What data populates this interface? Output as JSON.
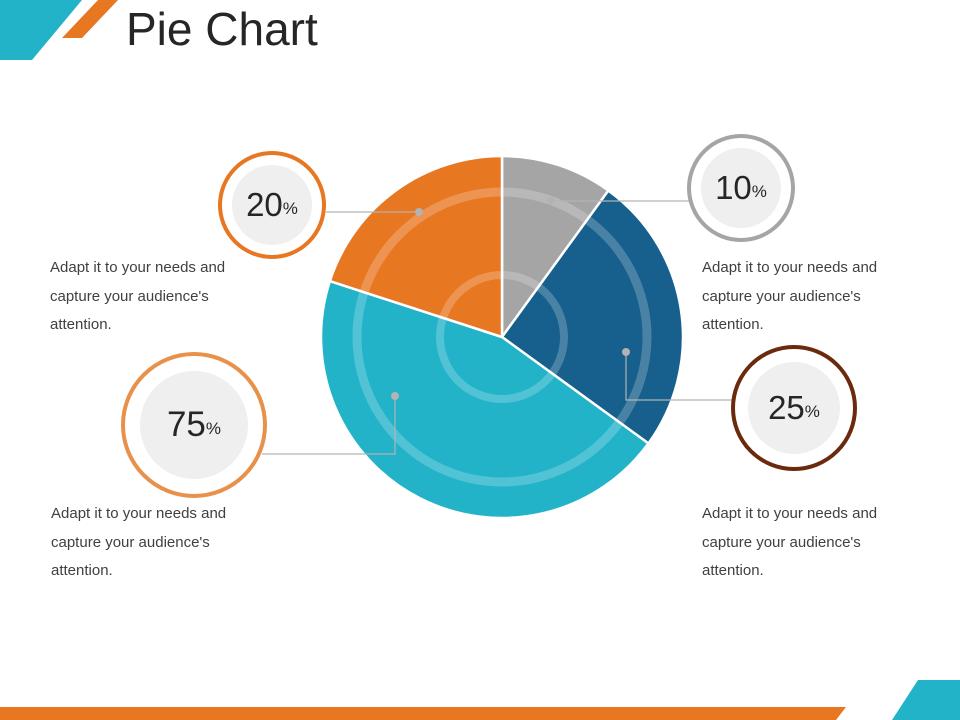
{
  "title": "Pie Chart",
  "colors": {
    "orange": "#E87722",
    "teal": "#22B3C9",
    "navy": "#175F8C",
    "gray": "#A5A5A5",
    "brown": "#6B2A0E",
    "light_orange": "#E8914A"
  },
  "chart_data": {
    "type": "pie",
    "slices": [
      {
        "value": 10,
        "color": "#A5A5A5"
      },
      {
        "value": 25,
        "color": "#175F8C"
      },
      {
        "value": 45,
        "color": "#22B3C9"
      },
      {
        "value": 20,
        "color": "#E87722"
      }
    ]
  },
  "callouts": [
    {
      "value": "20",
      "unit": "%",
      "color": "#E87722",
      "text": "Adapt it to your needs and capture your audience's attention."
    },
    {
      "value": "75",
      "unit": "%",
      "color": "#E8914A",
      "text": "Adapt it to your needs and capture your audience's attention."
    },
    {
      "value": "10",
      "unit": "%",
      "color": "#A5A5A5",
      "text": "Adapt it to your needs and capture your audience's attention."
    },
    {
      "value": "25",
      "unit": "%",
      "color": "#6B2A0E",
      "text": "Adapt it to your needs and capture your audience's attention."
    }
  ]
}
